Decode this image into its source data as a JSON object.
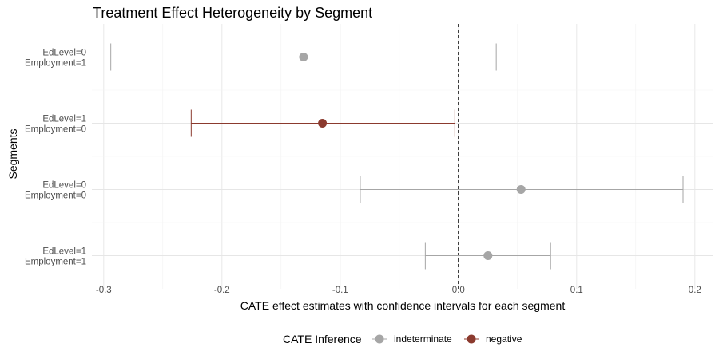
{
  "chart_data": {
    "type": "scatter",
    "title": "Treatment Effect Heterogeneity by Segment",
    "xlabel": "CATE effect estimates with confidence intervals for each segment",
    "ylabel": "Segments",
    "xlim": [
      -0.31,
      0.215
    ],
    "xticks": [
      -0.3,
      -0.2,
      -0.1,
      0.0,
      0.1,
      0.2
    ],
    "xtick_labels": [
      "-0.3",
      "-0.2",
      "-0.1",
      "0.0",
      "0.1",
      "0.2"
    ],
    "reference_line": 0,
    "grid": true,
    "legend_position": "bottom",
    "legend_title": "CATE Inference",
    "legend": [
      {
        "name": "indeterminate",
        "color": "#a6a6a6"
      },
      {
        "name": "negative",
        "color": "#8b3a2e"
      }
    ],
    "segments": [
      {
        "label_lines": [
          "EdLevel=0",
          "Employment=1"
        ],
        "estimate": -0.131,
        "lower": -0.294,
        "upper": 0.032,
        "inference": "indeterminate"
      },
      {
        "label_lines": [
          "EdLevel=1",
          "Employment=0"
        ],
        "estimate": -0.115,
        "lower": -0.226,
        "upper": -0.003,
        "inference": "negative"
      },
      {
        "label_lines": [
          "EdLevel=0",
          "Employment=0"
        ],
        "estimate": 0.053,
        "lower": -0.083,
        "upper": 0.19,
        "inference": "indeterminate"
      },
      {
        "label_lines": [
          "EdLevel=1",
          "Employment=1"
        ],
        "estimate": 0.025,
        "lower": -0.028,
        "upper": 0.078,
        "inference": "indeterminate"
      }
    ]
  }
}
